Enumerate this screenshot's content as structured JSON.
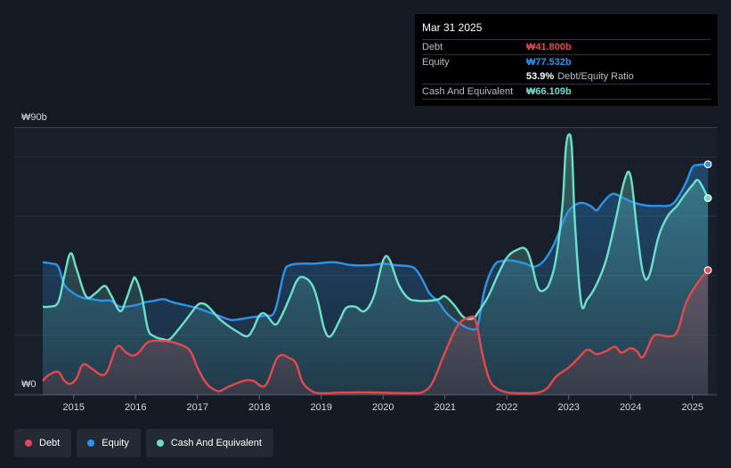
{
  "chart_data": {
    "type": "area",
    "currency_symbol": "₩",
    "y_axis": {
      "top_label": "₩90b",
      "bottom_label": "₩0",
      "ylim": [
        0,
        90
      ]
    },
    "x_ticks": [
      "2015",
      "2016",
      "2017",
      "2018",
      "2019",
      "2020",
      "2021",
      "2022",
      "2023",
      "2024",
      "2025"
    ],
    "xlim": [
      2014.5,
      2025.25
    ],
    "series": [
      {
        "name": "Debt",
        "color": "#e5484d",
        "points": [
          [
            2014.5,
            4.5
          ],
          [
            2014.6,
            6.5
          ],
          [
            2014.75,
            7.5
          ],
          [
            2014.85,
            4.5
          ],
          [
            2014.95,
            3.5
          ],
          [
            2015.05,
            5.5
          ],
          [
            2015.15,
            10
          ],
          [
            2015.3,
            8.5
          ],
          [
            2015.45,
            6.5
          ],
          [
            2015.55,
            8
          ],
          [
            2015.7,
            16
          ],
          [
            2015.85,
            14
          ],
          [
            2015.95,
            13
          ],
          [
            2016.05,
            14
          ],
          [
            2016.2,
            17.5
          ],
          [
            2016.4,
            18
          ],
          [
            2016.6,
            17.5
          ],
          [
            2016.8,
            16
          ],
          [
            2016.9,
            14
          ],
          [
            2017,
            9
          ],
          [
            2017.1,
            5
          ],
          [
            2017.2,
            2.5
          ],
          [
            2017.35,
            1
          ],
          [
            2017.5,
            2.5
          ],
          [
            2017.75,
            4.5
          ],
          [
            2017.9,
            4.5
          ],
          [
            2018.1,
            3
          ],
          [
            2018.3,
            12.5
          ],
          [
            2018.5,
            12
          ],
          [
            2018.6,
            10
          ],
          [
            2018.7,
            4
          ],
          [
            2018.85,
            1
          ],
          [
            2019,
            0.3
          ],
          [
            2019.3,
            0.5
          ],
          [
            2019.7,
            0.6
          ],
          [
            2020.2,
            0.4
          ],
          [
            2020.5,
            0.4
          ],
          [
            2020.65,
            0.8
          ],
          [
            2020.8,
            4
          ],
          [
            2021,
            14
          ],
          [
            2021.2,
            23
          ],
          [
            2021.4,
            26
          ],
          [
            2021.5,
            24.5
          ],
          [
            2021.6,
            14
          ],
          [
            2021.7,
            6
          ],
          [
            2021.8,
            2.5
          ],
          [
            2022,
            0.6
          ],
          [
            2022.3,
            0.3
          ],
          [
            2022.5,
            0.5
          ],
          [
            2022.65,
            2
          ],
          [
            2022.8,
            6
          ],
          [
            2023,
            9
          ],
          [
            2023.15,
            12
          ],
          [
            2023.3,
            15
          ],
          [
            2023.45,
            13.5
          ],
          [
            2023.6,
            14.5
          ],
          [
            2023.75,
            16
          ],
          [
            2023.85,
            14
          ],
          [
            2024,
            15.5
          ],
          [
            2024.1,
            14.5
          ],
          [
            2024.2,
            12.5
          ],
          [
            2024.35,
            19
          ],
          [
            2024.45,
            20
          ],
          [
            2024.6,
            19.5
          ],
          [
            2024.75,
            21
          ],
          [
            2024.9,
            31
          ],
          [
            2025.1,
            38
          ],
          [
            2025.25,
            41.8
          ]
        ]
      },
      {
        "name": "Equity",
        "color": "#2e93e9",
        "points": [
          [
            2014.5,
            44.5
          ],
          [
            2014.65,
            44
          ],
          [
            2014.75,
            43
          ],
          [
            2014.85,
            37
          ],
          [
            2015,
            34
          ],
          [
            2015.15,
            32.5
          ],
          [
            2015.3,
            32
          ],
          [
            2015.45,
            31.5
          ],
          [
            2015.6,
            31.5
          ],
          [
            2015.75,
            29.5
          ],
          [
            2016,
            30
          ],
          [
            2016.15,
            31
          ],
          [
            2016.3,
            31.5
          ],
          [
            2016.45,
            32
          ],
          [
            2016.6,
            31
          ],
          [
            2016.8,
            30
          ],
          [
            2017,
            29
          ],
          [
            2017.2,
            27.5
          ],
          [
            2017.4,
            26
          ],
          [
            2017.55,
            25
          ],
          [
            2017.75,
            25.5
          ],
          [
            2017.9,
            26
          ],
          [
            2018.1,
            26.5
          ],
          [
            2018.25,
            28
          ],
          [
            2018.4,
            41
          ],
          [
            2018.5,
            43.5
          ],
          [
            2018.7,
            44
          ],
          [
            2018.9,
            44
          ],
          [
            2019.2,
            44.5
          ],
          [
            2019.5,
            43.5
          ],
          [
            2019.8,
            43.5
          ],
          [
            2020,
            44
          ],
          [
            2020.2,
            43.5
          ],
          [
            2020.45,
            43
          ],
          [
            2020.55,
            41.5
          ],
          [
            2020.65,
            38
          ],
          [
            2020.75,
            34
          ],
          [
            2020.9,
            31
          ],
          [
            2021,
            28
          ],
          [
            2021.15,
            25
          ],
          [
            2021.3,
            23
          ],
          [
            2021.4,
            22
          ],
          [
            2021.5,
            22
          ],
          [
            2021.55,
            25
          ],
          [
            2021.65,
            36
          ],
          [
            2021.8,
            43.5
          ],
          [
            2021.95,
            45
          ],
          [
            2022.1,
            45
          ],
          [
            2022.3,
            44
          ],
          [
            2022.45,
            43
          ],
          [
            2022.6,
            45
          ],
          [
            2022.75,
            50
          ],
          [
            2022.85,
            55
          ],
          [
            2022.95,
            60
          ],
          [
            2023.05,
            63
          ],
          [
            2023.2,
            64.5
          ],
          [
            2023.35,
            63.5
          ],
          [
            2023.45,
            62
          ],
          [
            2023.55,
            64.5
          ],
          [
            2023.7,
            67.5
          ],
          [
            2023.85,
            66.5
          ],
          [
            2024,
            65
          ],
          [
            2024.15,
            64
          ],
          [
            2024.3,
            63.5
          ],
          [
            2024.45,
            63.5
          ],
          [
            2024.6,
            63.5
          ],
          [
            2024.7,
            64.5
          ],
          [
            2024.8,
            67.5
          ],
          [
            2024.9,
            71.5
          ],
          [
            2025,
            76.5
          ],
          [
            2025.1,
            77.3
          ],
          [
            2025.25,
            77.5
          ]
        ]
      },
      {
        "name": "Cash And Equivalent",
        "color": "#6de0cc",
        "points": [
          [
            2014.5,
            29.5
          ],
          [
            2014.6,
            29.5
          ],
          [
            2014.75,
            31
          ],
          [
            2014.85,
            40
          ],
          [
            2014.95,
            47.5
          ],
          [
            2015.05,
            42
          ],
          [
            2015.2,
            33
          ],
          [
            2015.35,
            34
          ],
          [
            2015.5,
            36.5
          ],
          [
            2015.6,
            33.5
          ],
          [
            2015.75,
            28
          ],
          [
            2015.85,
            32
          ],
          [
            2015.95,
            38
          ],
          [
            2016,
            39
          ],
          [
            2016.1,
            33
          ],
          [
            2016.2,
            22
          ],
          [
            2016.3,
            19.5
          ],
          [
            2016.45,
            18.5
          ],
          [
            2016.55,
            18.5
          ],
          [
            2016.7,
            22
          ],
          [
            2016.85,
            26
          ],
          [
            2017,
            30
          ],
          [
            2017.1,
            30.5
          ],
          [
            2017.2,
            29
          ],
          [
            2017.35,
            25.5
          ],
          [
            2017.5,
            23
          ],
          [
            2017.65,
            21
          ],
          [
            2017.8,
            19.5
          ],
          [
            2017.9,
            22
          ],
          [
            2018,
            26.5
          ],
          [
            2018.1,
            27
          ],
          [
            2018.25,
            23.5
          ],
          [
            2018.35,
            26
          ],
          [
            2018.5,
            33
          ],
          [
            2018.6,
            38
          ],
          [
            2018.7,
            39.5
          ],
          [
            2018.85,
            37
          ],
          [
            2018.95,
            31
          ],
          [
            2019.05,
            22
          ],
          [
            2019.15,
            19.5
          ],
          [
            2019.3,
            25
          ],
          [
            2019.4,
            29
          ],
          [
            2019.55,
            29.5
          ],
          [
            2019.7,
            28
          ],
          [
            2019.85,
            33
          ],
          [
            2020,
            45
          ],
          [
            2020.1,
            45.5
          ],
          [
            2020.25,
            37
          ],
          [
            2020.4,
            32.5
          ],
          [
            2020.55,
            31.5
          ],
          [
            2020.75,
            31.5
          ],
          [
            2020.9,
            32
          ],
          [
            2021,
            33
          ],
          [
            2021.15,
            30
          ],
          [
            2021.3,
            26
          ],
          [
            2021.45,
            25.5
          ],
          [
            2021.55,
            28
          ],
          [
            2021.7,
            33
          ],
          [
            2021.85,
            40
          ],
          [
            2022,
            46
          ],
          [
            2022.15,
            48.5
          ],
          [
            2022.3,
            49
          ],
          [
            2022.4,
            44
          ],
          [
            2022.5,
            36
          ],
          [
            2022.6,
            35
          ],
          [
            2022.7,
            38
          ],
          [
            2022.8,
            46.5
          ],
          [
            2022.9,
            64
          ],
          [
            2022.95,
            82
          ],
          [
            2023.0,
            87.5
          ],
          [
            2023.05,
            83
          ],
          [
            2023.1,
            58
          ],
          [
            2023.2,
            31
          ],
          [
            2023.3,
            32
          ],
          [
            2023.45,
            37
          ],
          [
            2023.6,
            45
          ],
          [
            2023.75,
            58
          ],
          [
            2023.9,
            72
          ],
          [
            2024,
            73.5
          ],
          [
            2024.1,
            56
          ],
          [
            2024.2,
            41
          ],
          [
            2024.3,
            40
          ],
          [
            2024.45,
            53
          ],
          [
            2024.6,
            60
          ],
          [
            2024.75,
            63.5
          ],
          [
            2024.85,
            66.5
          ],
          [
            2025,
            70.5
          ],
          [
            2025.1,
            72
          ],
          [
            2025.25,
            66.1
          ]
        ]
      }
    ],
    "tooltip": {
      "date": "Mar 31 2025",
      "rows": [
        {
          "label": "Debt",
          "value": "₩41.800b",
          "color": "#e5484d"
        },
        {
          "label": "Equity",
          "value": "₩77.532b",
          "color": "#2e93e9"
        },
        {
          "label": "",
          "ratio_value": "53.9%",
          "ratio_text": "Debt/Equity Ratio"
        },
        {
          "label": "Cash And Equivalent",
          "value": "₩66.109b",
          "color": "#6de0cc"
        }
      ]
    },
    "legend": [
      {
        "label": "Debt",
        "color": "#e5484d"
      },
      {
        "label": "Equity",
        "color": "#2e93e9"
      },
      {
        "label": "Cash And Equivalent",
        "color": "#6de0cc"
      }
    ]
  }
}
